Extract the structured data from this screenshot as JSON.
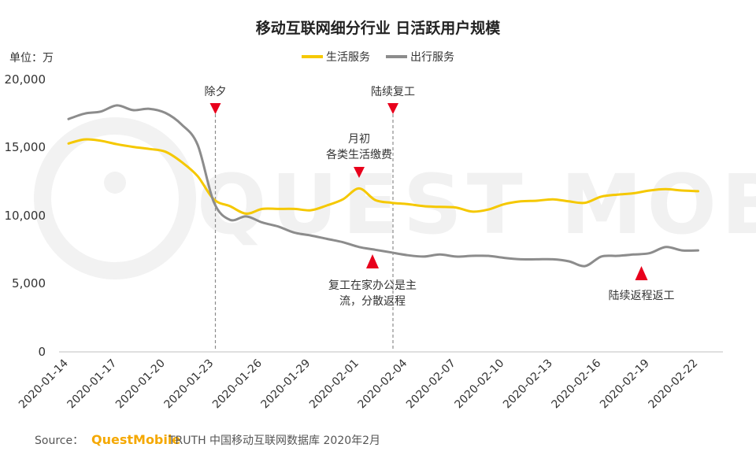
{
  "chart_data": {
    "type": "line",
    "title": "移动互联网细分行业 日活跃用户规模",
    "unit_label": "单位：万",
    "yticks": [
      "20,000",
      "15,000",
      "10,000",
      "5,000",
      "0"
    ],
    "ylim": [
      0,
      20000
    ],
    "grid": false,
    "legend_position": "top-right",
    "x_start": "2020-01-14",
    "x_end": "2020-02-23",
    "xtick_labels": [
      "2020-01-14",
      "2020-01-17",
      "2020-01-20",
      "2020-01-23",
      "2020-01-26",
      "2020-01-29",
      "2020-02-01",
      "2020-02-04",
      "2020-02-07",
      "2020-02-10",
      "2020-02-13",
      "2020-02-16",
      "2020-02-19",
      "2020-02-22"
    ],
    "series": [
      {
        "name": "生活服务",
        "color": "#f5c800",
        "points": [
          [
            "2020-01-14",
            15300
          ],
          [
            "2020-01-15",
            15600
          ],
          [
            "2020-01-16",
            15500
          ],
          [
            "2020-01-17",
            15250
          ],
          [
            "2020-01-18",
            15050
          ],
          [
            "2020-01-19",
            14900
          ],
          [
            "2020-01-20",
            14700
          ],
          [
            "2020-01-21",
            13950
          ],
          [
            "2020-01-22",
            12900
          ],
          [
            "2020-01-23",
            11200
          ],
          [
            "2020-01-24",
            10700
          ],
          [
            "2020-01-25",
            10150
          ],
          [
            "2020-01-26",
            10500
          ],
          [
            "2020-01-27",
            10500
          ],
          [
            "2020-01-28",
            10500
          ],
          [
            "2020-01-29",
            10400
          ],
          [
            "2020-01-30",
            10750
          ],
          [
            "2020-01-31",
            11200
          ],
          [
            "2020-02-01",
            12000
          ],
          [
            "2020-02-02",
            11150
          ],
          [
            "2020-02-03",
            10950
          ],
          [
            "2020-02-04",
            10850
          ],
          [
            "2020-02-05",
            10700
          ],
          [
            "2020-02-06",
            10650
          ],
          [
            "2020-02-07",
            10600
          ],
          [
            "2020-02-08",
            10300
          ],
          [
            "2020-02-09",
            10450
          ],
          [
            "2020-02-10",
            10850
          ],
          [
            "2020-02-11",
            11050
          ],
          [
            "2020-02-12",
            11100
          ],
          [
            "2020-02-13",
            11200
          ],
          [
            "2020-02-14",
            11050
          ],
          [
            "2020-02-15",
            10950
          ],
          [
            "2020-02-16",
            11400
          ],
          [
            "2020-02-17",
            11550
          ],
          [
            "2020-02-18",
            11650
          ],
          [
            "2020-02-19",
            11850
          ],
          [
            "2020-02-20",
            11950
          ],
          [
            "2020-02-21",
            11850
          ],
          [
            "2020-02-22",
            11800
          ]
        ]
      },
      {
        "name": "出行服务",
        "color": "#8c8c8c",
        "points": [
          [
            "2020-01-14",
            17100
          ],
          [
            "2020-01-15",
            17500
          ],
          [
            "2020-01-16",
            17650
          ],
          [
            "2020-01-17",
            18100
          ],
          [
            "2020-01-18",
            17750
          ],
          [
            "2020-01-19",
            17850
          ],
          [
            "2020-01-20",
            17550
          ],
          [
            "2020-01-21",
            16700
          ],
          [
            "2020-01-22",
            15200
          ],
          [
            "2020-01-23",
            11000
          ],
          [
            "2020-01-24",
            9700
          ],
          [
            "2020-01-25",
            9950
          ],
          [
            "2020-01-26",
            9500
          ],
          [
            "2020-01-27",
            9200
          ],
          [
            "2020-01-28",
            8750
          ],
          [
            "2020-01-29",
            8550
          ],
          [
            "2020-01-30",
            8300
          ],
          [
            "2020-01-31",
            8050
          ],
          [
            "2020-02-01",
            7700
          ],
          [
            "2020-02-02",
            7500
          ],
          [
            "2020-02-03",
            7300
          ],
          [
            "2020-02-04",
            7100
          ],
          [
            "2020-02-05",
            7000
          ],
          [
            "2020-02-06",
            7150
          ],
          [
            "2020-02-07",
            7000
          ],
          [
            "2020-02-08",
            7050
          ],
          [
            "2020-02-09",
            7050
          ],
          [
            "2020-02-10",
            6900
          ],
          [
            "2020-02-11",
            6800
          ],
          [
            "2020-02-12",
            6800
          ],
          [
            "2020-02-13",
            6800
          ],
          [
            "2020-02-14",
            6650
          ],
          [
            "2020-02-15",
            6300
          ],
          [
            "2020-02-16",
            7000
          ],
          [
            "2020-02-17",
            7050
          ],
          [
            "2020-02-18",
            7150
          ],
          [
            "2020-02-19",
            7250
          ],
          [
            "2020-02-20",
            7700
          ],
          [
            "2020-02-21",
            7450
          ],
          [
            "2020-02-22",
            7450
          ]
        ]
      }
    ],
    "vlines": [
      {
        "date": "2020-01-23",
        "label": "除夕"
      },
      {
        "date": "2020-02-03",
        "label": "陆续复工"
      }
    ],
    "annotations": [
      {
        "date": "2020-02-01",
        "marker": "down-triangle",
        "label_lines": [
          "月初",
          "各类生活缴费"
        ],
        "color": "#e8001c"
      },
      {
        "date": "2020-02-03",
        "marker": "up-triangle",
        "label_lines": [
          "复工在家办公是主",
          "流，分散返程"
        ],
        "color": "#e8001c"
      },
      {
        "date": "2020-02-18",
        "marker": "up-triangle",
        "label_lines": [
          "陆续返程返工"
        ],
        "color": "#e8001c"
      }
    ]
  },
  "source": {
    "prefix": "Source：",
    "brand": "QuestMobile",
    "suffix": "TRUTH 中国移动互联网数据库 2020年2月"
  },
  "watermark": "QUEST MOBILE"
}
